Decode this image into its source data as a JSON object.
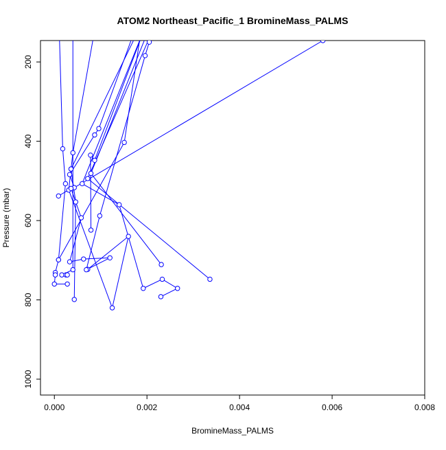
{
  "chart_data": {
    "type": "line",
    "title": "ATOM2 Northeast_Pacific_1 BromineMass_PALMS",
    "xlabel": "BromineMass_PALMS",
    "ylabel": "Pressure (mbar)",
    "xlim": [
      -0.0003,
      0.008
    ],
    "ylim": [
      1040,
      146
    ],
    "y_inverted": true,
    "xticks": [
      0,
      0.002,
      0.004,
      0.006,
      0.008
    ],
    "xtick_labels": [
      "0.000",
      "0.002",
      "0.004",
      "0.006",
      "0.008"
    ],
    "yticks": [
      200,
      400,
      600,
      800,
      1000
    ],
    "ytick_labels": [
      "200",
      "400",
      "600",
      "800",
      "1000"
    ],
    "grid": false,
    "color": "#0000ff",
    "marker": "open-circle",
    "series": [
      {
        "points": [
          [
            0.0001,
            100
          ],
          [
            0.00018,
            419
          ],
          [
            0.00024,
            507
          ],
          [
            9e-05,
            699
          ],
          [
            2e-05,
            731
          ],
          [
            2e-05,
            737
          ],
          [
            0.0,
            760
          ],
          [
            0.00028,
            760
          ]
        ]
      },
      {
        "points": [
          [
            0.0009,
            100
          ],
          [
            0.0004,
            429
          ],
          [
            0.00036,
            470
          ],
          [
            0.00046,
            553
          ],
          [
            0.00043,
            799
          ]
        ]
      },
      {
        "points": [
          [
            0.0019,
            100
          ],
          [
            0.00151,
            403
          ],
          [
            9e-05,
            699
          ]
        ]
      },
      {
        "points": [
          [
            0.0018,
            100
          ],
          [
            0.00096,
            368
          ],
          [
            0.00087,
            384
          ],
          [
            0.00033,
            484
          ],
          [
            0.00043,
            517
          ],
          [
            0.0058,
            146
          ],
          [
            0.0062,
            120
          ]
        ]
      },
      {
        "points": [
          [
            0.002,
            100
          ],
          [
            0.00087,
            448
          ],
          [
            0.00078,
            435
          ],
          [
            0.00079,
            624
          ]
        ]
      },
      {
        "points": [
          [
            0.0019,
            100
          ],
          [
            0.00036,
            470
          ],
          [
            0.00031,
            523
          ],
          [
            0.00125,
            820
          ],
          [
            0.0016,
            640
          ],
          [
            0.00072,
            723
          ]
        ]
      },
      {
        "points": [
          [
            0.0021,
            100
          ],
          [
            0.00079,
            481
          ],
          [
            0.00231,
            711
          ]
        ]
      },
      {
        "points": [
          [
            0.0022,
            100
          ],
          [
            0.00072,
            494
          ],
          [
            0.00336,
            748
          ]
        ]
      },
      {
        "points": [
          [
            0.002,
            100
          ],
          [
            0.0006,
            507
          ],
          [
            0.0014,
            560
          ],
          [
            0.00192,
            771
          ],
          [
            0.00233,
            748
          ],
          [
            0.00266,
            771
          ],
          [
            0.0023,
            792
          ]
        ]
      },
      {
        "points": [
          [
            0.00205,
            150
          ],
          [
            0.00196,
            184
          ],
          [
            0.00098,
            588
          ],
          [
            0.00069,
            724
          ],
          [
            0.0012,
            694
          ],
          [
            0.00063,
            697
          ],
          [
            0.00033,
            704
          ],
          [
            0.00058,
            593
          ],
          [
            0.00036,
            519
          ],
          [
            9e-05,
            538
          ]
        ]
      },
      {
        "points": [
          [
            0.0004,
            100
          ],
          [
            0.0004,
            724
          ],
          [
            0.00016,
            737
          ],
          [
            0.00025,
            737
          ],
          [
            0.00028,
            737
          ]
        ]
      }
    ]
  }
}
